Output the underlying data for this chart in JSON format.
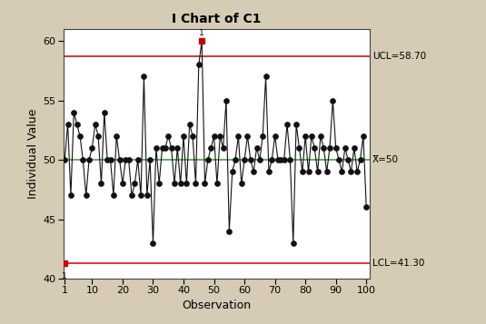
{
  "title": "I Chart of C1",
  "xlabel": "Observation",
  "ylabel": "Individual Value",
  "ucl": 58.7,
  "lcl": 41.3,
  "cl": 50,
  "ucl_label": "UCL=58.70",
  "lcl_label": "LCL=41.30",
  "cl_label": "X̅=50",
  "background_color": "#d6cbb5",
  "plot_bg": "#ffffff",
  "ucl_color": "#cc0000",
  "lcl_color": "#cc0000",
  "cl_color": "#339933",
  "line_color": "#111111",
  "dot_color": "#111111",
  "out_color": "#cc0000",
  "ylim": [
    40,
    61
  ],
  "xlim": [
    0.5,
    101
  ],
  "yticks": [
    40,
    45,
    50,
    55,
    60
  ],
  "xticks": [
    1,
    10,
    20,
    30,
    40,
    50,
    60,
    70,
    80,
    90,
    100
  ],
  "values": [
    50,
    53,
    47,
    54,
    53,
    52,
    50,
    47,
    50,
    51,
    53,
    52,
    48,
    54,
    50,
    50,
    47,
    52,
    50,
    48,
    50,
    50,
    47,
    48,
    50,
    47,
    57,
    47,
    50,
    43,
    51,
    48,
    51,
    51,
    52,
    51,
    48,
    51,
    48,
    52,
    48,
    53,
    52,
    48,
    58,
    60,
    48,
    50,
    51,
    52,
    48,
    52,
    51,
    55,
    44,
    49,
    50,
    52,
    48,
    50,
    52,
    50,
    49,
    51,
    50,
    52,
    57,
    49,
    50,
    52,
    50,
    50,
    50,
    53,
    50,
    43,
    53,
    51,
    49,
    52,
    49,
    52,
    51,
    49,
    52,
    51,
    49,
    51,
    55,
    51,
    50,
    49,
    51,
    50,
    49,
    51,
    49,
    50,
    52,
    46
  ],
  "out_indices_1based": [
    46
  ],
  "lcl_special_1based": [
    1
  ],
  "figsize": [
    5.35,
    3.57
  ],
  "dpi": 100
}
